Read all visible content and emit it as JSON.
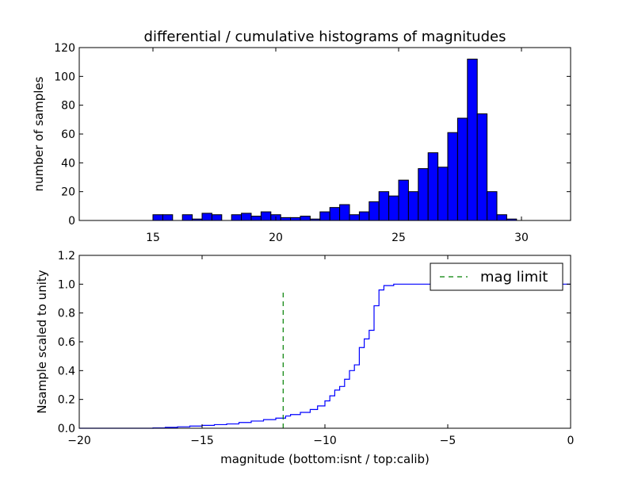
{
  "chart_data": [
    {
      "type": "bar",
      "title": "differential / cumulative histograms of magnitudes",
      "ylabel": "number of samples",
      "xlim": [
        12,
        32
      ],
      "ylim": [
        0,
        120
      ],
      "xticks": [
        15,
        20,
        25,
        30
      ],
      "yticks": [
        0,
        20,
        40,
        60,
        80,
        100,
        120
      ],
      "grid": false,
      "bin_width": 0.4,
      "color": "#0000ff",
      "bins": [
        {
          "x": 15.0,
          "count": 4
        },
        {
          "x": 15.4,
          "count": 4
        },
        {
          "x": 16.2,
          "count": 4
        },
        {
          "x": 16.6,
          "count": 1
        },
        {
          "x": 17.0,
          "count": 5
        },
        {
          "x": 17.4,
          "count": 4
        },
        {
          "x": 18.2,
          "count": 4
        },
        {
          "x": 18.6,
          "count": 5
        },
        {
          "x": 19.0,
          "count": 3
        },
        {
          "x": 19.4,
          "count": 6
        },
        {
          "x": 19.8,
          "count": 4
        },
        {
          "x": 20.2,
          "count": 2
        },
        {
          "x": 20.6,
          "count": 2
        },
        {
          "x": 21.0,
          "count": 3
        },
        {
          "x": 21.4,
          "count": 1
        },
        {
          "x": 21.8,
          "count": 6
        },
        {
          "x": 22.2,
          "count": 9
        },
        {
          "x": 22.6,
          "count": 11
        },
        {
          "x": 23.0,
          "count": 4
        },
        {
          "x": 23.4,
          "count": 6
        },
        {
          "x": 23.8,
          "count": 13
        },
        {
          "x": 24.2,
          "count": 20
        },
        {
          "x": 24.6,
          "count": 17
        },
        {
          "x": 25.0,
          "count": 28
        },
        {
          "x": 25.4,
          "count": 20
        },
        {
          "x": 25.8,
          "count": 36
        },
        {
          "x": 26.2,
          "count": 47
        },
        {
          "x": 26.6,
          "count": 37
        },
        {
          "x": 27.0,
          "count": 61
        },
        {
          "x": 27.4,
          "count": 71
        },
        {
          "x": 27.8,
          "count": 112
        },
        {
          "x": 28.2,
          "count": 74
        },
        {
          "x": 28.6,
          "count": 20
        },
        {
          "x": 29.0,
          "count": 4
        },
        {
          "x": 29.4,
          "count": 1
        }
      ]
    },
    {
      "type": "line",
      "step": true,
      "xlabel": "magnitude (bottom:isnt / top:calib)",
      "ylabel": "Nsample scaled to unity",
      "xlim": [
        -20,
        0
      ],
      "ylim": [
        0,
        1.2
      ],
      "xticks": [
        -20,
        -15,
        -10,
        -5,
        0
      ],
      "xtick_labels": [
        "−20",
        "−15",
        "−10",
        "−5",
        "0"
      ],
      "yticks": [
        0.0,
        0.2,
        0.4,
        0.6,
        0.8,
        1.0,
        1.2
      ],
      "ytick_labels": [
        "0.0",
        "0.2",
        "0.4",
        "0.6",
        "0.8",
        "1.0",
        "1.2"
      ],
      "grid": false,
      "legend": {
        "position": "top-right",
        "entries": [
          {
            "label": "mag limit",
            "color": "#008000",
            "style": "dashed"
          }
        ]
      },
      "series": [
        {
          "color": "#0000ff",
          "points": [
            [
              -20.0,
              0.0
            ],
            [
              -17.5,
              0.0
            ],
            [
              -17.0,
              0.002
            ],
            [
              -16.5,
              0.006
            ],
            [
              -16.0,
              0.01
            ],
            [
              -15.5,
              0.015
            ],
            [
              -15.0,
              0.02
            ],
            [
              -14.5,
              0.025
            ],
            [
              -14.0,
              0.03
            ],
            [
              -13.5,
              0.04
            ],
            [
              -13.0,
              0.05
            ],
            [
              -12.5,
              0.06
            ],
            [
              -12.0,
              0.07
            ],
            [
              -11.6,
              0.085
            ],
            [
              -11.4,
              0.095
            ],
            [
              -11.0,
              0.11
            ],
            [
              -10.6,
              0.13
            ],
            [
              -10.3,
              0.155
            ],
            [
              -10.0,
              0.19
            ],
            [
              -9.8,
              0.225
            ],
            [
              -9.6,
              0.265
            ],
            [
              -9.4,
              0.29
            ],
            [
              -9.2,
              0.34
            ],
            [
              -9.0,
              0.4
            ],
            [
              -8.8,
              0.44
            ],
            [
              -8.6,
              0.56
            ],
            [
              -8.4,
              0.62
            ],
            [
              -8.2,
              0.68
            ],
            [
              -8.0,
              0.85
            ],
            [
              -7.8,
              0.96
            ],
            [
              -7.6,
              0.99
            ],
            [
              -7.2,
              1.0
            ],
            [
              0.0,
              1.0
            ]
          ]
        },
        {
          "name": "mag limit",
          "color": "#008000",
          "style": "dashed",
          "points": [
            [
              -11.7,
              0.0
            ],
            [
              -11.7,
              0.96
            ]
          ]
        }
      ]
    }
  ]
}
